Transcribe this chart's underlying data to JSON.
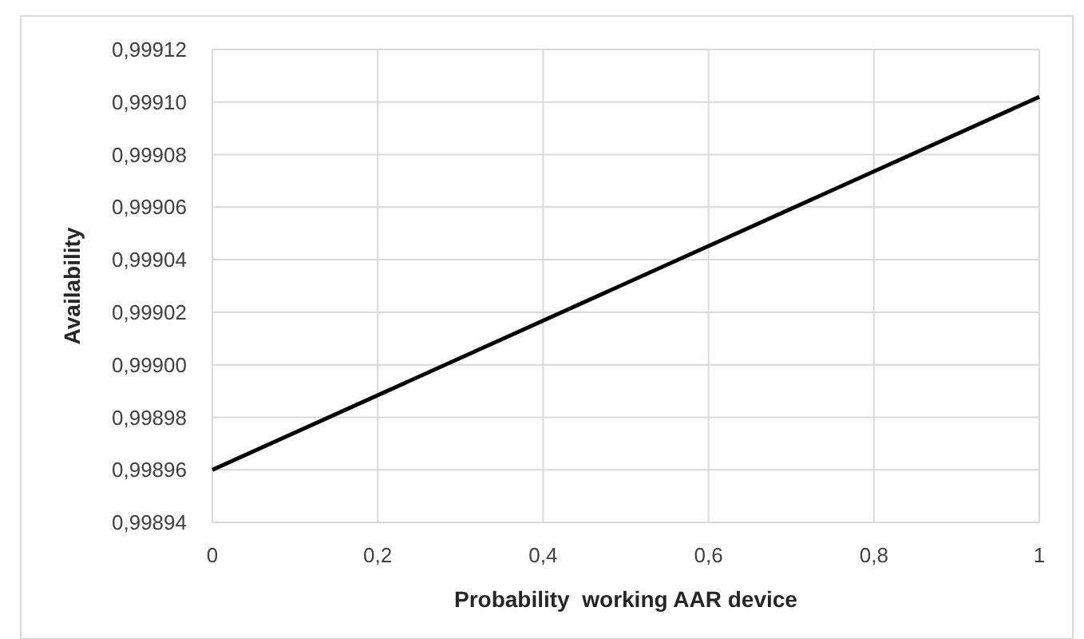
{
  "chart_data": {
    "type": "line",
    "xlabel": "Probability  working AAR device",
    "ylabel": "Availability",
    "x": [
      0,
      1
    ],
    "series": [
      {
        "color": "#000000",
        "values": [
          0.99896,
          0.999102
        ]
      }
    ],
    "xlim": [
      0,
      1
    ],
    "xticks": [
      0,
      {
        "value": 0.2,
        "label": "0,2"
      },
      {
        "value": 0.4,
        "label": "0,4"
      },
      {
        "value": 0.6,
        "label": "0,6"
      },
      {
        "value": 0.8,
        "label": "0,8"
      },
      1
    ],
    "ylim": [
      0.99894,
      0.99912
    ],
    "yticks": [
      {
        "value": 0.99894,
        "label": "0,99894"
      },
      {
        "value": 0.99896,
        "label": "0,99896"
      },
      {
        "value": 0.99898,
        "label": "0,99898"
      },
      {
        "value": 0.999,
        "label": "0,99900"
      },
      {
        "value": 0.99902,
        "label": "0,99902"
      },
      {
        "value": 0.99904,
        "label": "0,99904"
      },
      {
        "value": 0.99906,
        "label": "0,99906"
      },
      {
        "value": 0.99908,
        "label": "0,99908"
      },
      {
        "value": 0.9991,
        "label": "0,99910"
      },
      {
        "value": 0.99912,
        "label": "0,99912"
      }
    ],
    "grid": true,
    "marker": "none",
    "line_style": "solid"
  }
}
